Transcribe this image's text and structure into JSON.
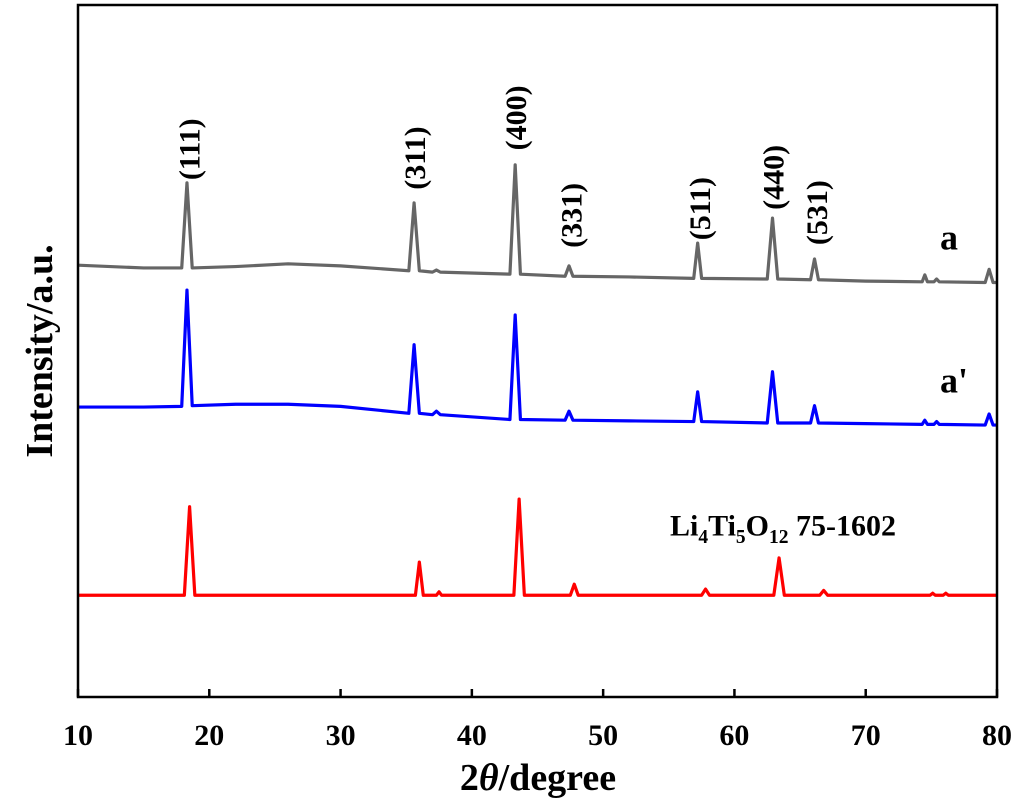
{
  "chart_data": {
    "type": "line",
    "xlabel": "2θ/degree",
    "ylabel": "Intensity/a.u.",
    "xlim": [
      10,
      80
    ],
    "xticks": [
      10,
      20,
      30,
      40,
      50,
      60,
      70,
      80
    ],
    "ylim": [
      0,
      100
    ],
    "series": [
      {
        "name": "a",
        "color": "#666666",
        "x": [
          10,
          15,
          17.9,
          18.3,
          18.7,
          22,
          26,
          30,
          35.2,
          35.6,
          36.0,
          37.0,
          37.3,
          37.6,
          42.9,
          43.3,
          43.7,
          47.1,
          47.4,
          47.7,
          52,
          56.9,
          57.2,
          57.5,
          62.5,
          62.9,
          63.3,
          65.8,
          66.1,
          66.4,
          70,
          74.3,
          74.5,
          74.7,
          75.2,
          75.4,
          75.6,
          79.1,
          79.4,
          79.7,
          80
        ],
        "values": [
          62.4,
          62.0,
          62.0,
          74.3,
          62.0,
          62.2,
          62.6,
          62.3,
          61.6,
          71.4,
          61.6,
          61.4,
          61.7,
          61.4,
          61.1,
          76.9,
          61.1,
          60.8,
          62.3,
          60.8,
          60.7,
          60.5,
          65.6,
          60.5,
          60.4,
          69.2,
          60.4,
          60.3,
          63.3,
          60.3,
          60.1,
          60.0,
          61.0,
          60.0,
          60.0,
          60.4,
          60.0,
          59.9,
          61.8,
          59.9,
          59.9
        ]
      },
      {
        "name": "a'",
        "color": "#0000ff",
        "x": [
          10,
          15,
          17.9,
          18.3,
          18.7,
          22,
          26,
          30,
          35.2,
          35.6,
          36.0,
          37.0,
          37.3,
          37.6,
          42.9,
          43.3,
          43.7,
          47.1,
          47.4,
          47.7,
          52,
          56.9,
          57.2,
          57.5,
          62.5,
          62.9,
          63.3,
          65.8,
          66.1,
          66.4,
          70,
          74.3,
          74.5,
          74.7,
          75.2,
          75.4,
          75.6,
          79.1,
          79.4,
          79.7,
          80
        ],
        "values": [
          41.9,
          41.9,
          42.0,
          58.8,
          42.1,
          42.3,
          42.3,
          42.0,
          41.0,
          50.9,
          41.0,
          40.8,
          41.3,
          40.8,
          40.1,
          55.2,
          40.1,
          40.0,
          41.3,
          40.0,
          39.9,
          39.8,
          44.1,
          39.8,
          39.6,
          47.0,
          39.6,
          39.6,
          42.1,
          39.6,
          39.5,
          39.4,
          40.0,
          39.4,
          39.4,
          39.8,
          39.4,
          39.3,
          40.9,
          39.3,
          39.3
        ]
      },
      {
        "name": "Li4Ti5O12 75-1602",
        "color": "#ff0000",
        "x": [
          10,
          18.1,
          18.5,
          18.9,
          35.7,
          36.0,
          36.3,
          37.3,
          37.5,
          37.7,
          43.2,
          43.6,
          44.0,
          47.5,
          47.8,
          48.1,
          57.5,
          57.8,
          58.1,
          63.0,
          63.4,
          63.8,
          66.5,
          66.8,
          67.1,
          74.9,
          75.1,
          75.3,
          75.9,
          76.1,
          76.3,
          80
        ],
        "values": [
          14.7,
          14.7,
          27.5,
          14.7,
          14.7,
          19.5,
          14.7,
          14.7,
          15.2,
          14.7,
          14.7,
          28.6,
          14.7,
          14.7,
          16.3,
          14.7,
          14.7,
          15.6,
          14.7,
          14.7,
          20.1,
          14.7,
          14.7,
          15.4,
          14.7,
          14.7,
          15.0,
          14.7,
          14.7,
          15.0,
          14.7,
          14.7
        ]
      }
    ],
    "annotations": [
      {
        "text": "(111)",
        "x": 18.4,
        "y": 74.7
      },
      {
        "text": "(311)",
        "x": 35.6,
        "y": 73.3
      },
      {
        "text": "(400)",
        "x": 43.3,
        "y": 79.0
      },
      {
        "text": "(331)",
        "x": 47.5,
        "y": 64.9
      },
      {
        "text": "(511)",
        "x": 57.3,
        "y": 66.0
      },
      {
        "text": "(440)",
        "x": 62.9,
        "y": 70.4
      },
      {
        "text": "(531)",
        "x": 66.2,
        "y": 65.3
      }
    ]
  }
}
